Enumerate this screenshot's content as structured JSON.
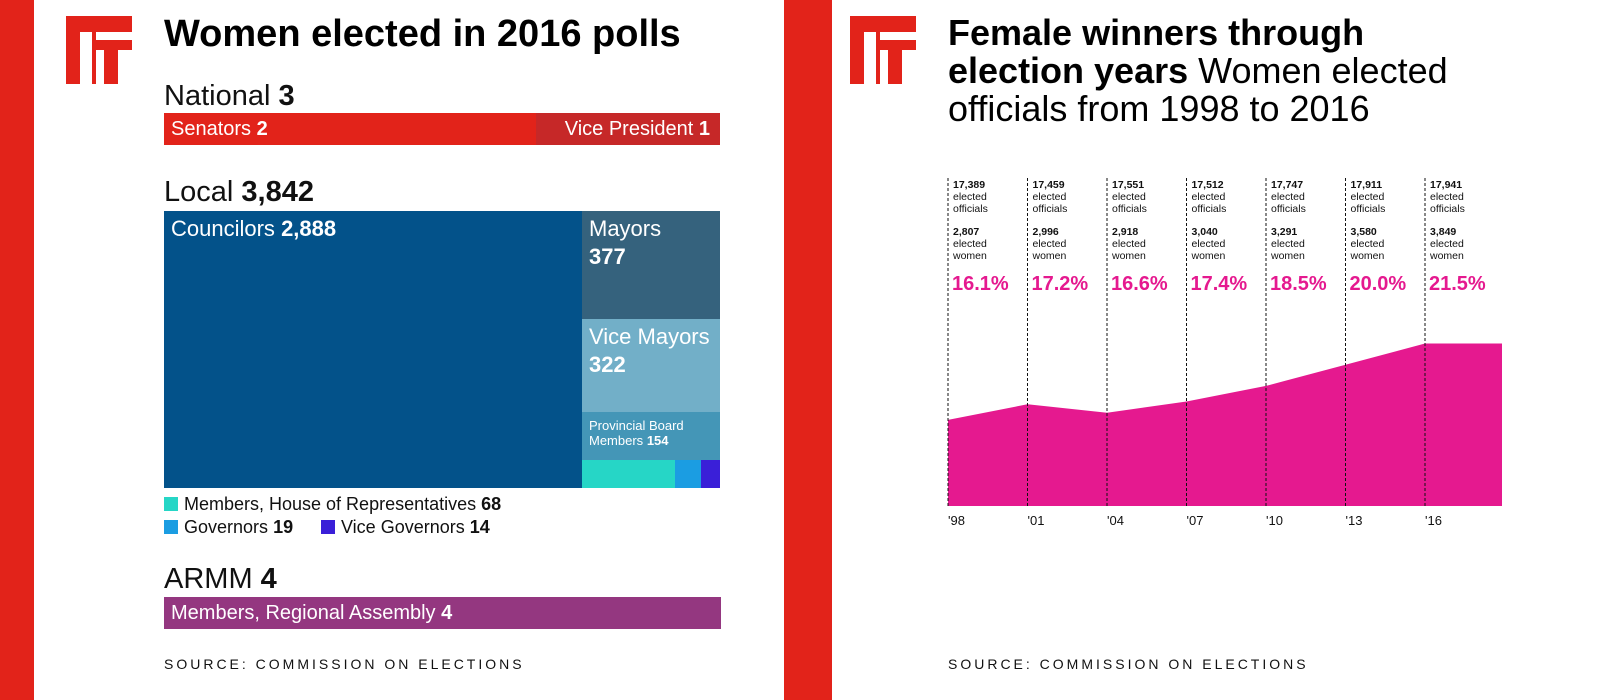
{
  "left": {
    "title": "Women elected in 2016 polls",
    "national": {
      "label": "National",
      "total": "3",
      "senators_label": "Senators",
      "senators_value": "2",
      "vp_label": "Vice President",
      "vp_value": "1"
    },
    "local": {
      "label": "Local",
      "total": "3,842",
      "councilors_label": "Councilors",
      "councilors_value": "2,888",
      "mayors_label": "Mayors",
      "mayors_value": "377",
      "vice_mayors_label": "Vice Mayors",
      "vice_mayors_value": "322",
      "pbm_label_1": "Provincial Board",
      "pbm_label_2": "Members",
      "pbm_value": "154",
      "hor_label": "Members, House of Representatives",
      "hor_value": "68",
      "gov_label": "Governors",
      "gov_value": "19",
      "vgov_label": "Vice Governors",
      "vgov_value": "14"
    },
    "armm": {
      "label": "ARMM",
      "total": "4",
      "assembly_label": "Members, Regional Assembly",
      "assembly_value": "4"
    },
    "source": "SOURCE: COMMISSION ON ELECTIONS",
    "colors": {
      "national_red": "#e2231a",
      "vp_red": "#c62828",
      "councilors": "#03528a",
      "mayors": "#35627d",
      "vice_mayors": "#72afc8",
      "provincial_board": "#4496b7",
      "house_reps": "#26d6c6",
      "governors": "#1b9de2",
      "vice_governors": "#3a1fd8",
      "armm": "#943780"
    }
  },
  "right": {
    "title_bold_1": "Female winners through",
    "title_bold_2": "election years",
    "title_regular_2": "Women elected",
    "title_regular_3": "officials from 1998 to 2016",
    "elected_officials_label_1": "elected",
    "elected_officials_label_2": "officials",
    "elected_women_label_1": "elected",
    "elected_women_label_2": "women",
    "source": "SOURCE: COMMISSION ON ELECTIONS",
    "area_color": "#e5198f"
  },
  "chart_data": [
    {
      "type": "bar",
      "title": "Women elected in 2016 polls",
      "categories": [
        "Senators",
        "Vice President",
        "Councilors",
        "Mayors",
        "Vice Mayors",
        "Provincial Board Members",
        "Members, House of Representatives",
        "Governors",
        "Vice Governors",
        "Members, Regional Assembly"
      ],
      "groups": {
        "National": 3,
        "Local": 3842,
        "ARMM": 4
      },
      "values": [
        2,
        1,
        2888,
        377,
        322,
        154,
        68,
        19,
        14,
        4
      ]
    },
    {
      "type": "area",
      "title": "Female winners through election years Women elected officials from 1998 to 2016",
      "x": [
        "'98",
        "'01",
        "'04",
        "'07",
        "'10",
        "'13",
        "'16"
      ],
      "elected_officials": [
        "17,389",
        "17,459",
        "17,551",
        "17,512",
        "17,747",
        "17,911",
        "17,941"
      ],
      "elected_women": [
        "2,807",
        "2,996",
        "2,918",
        "3,040",
        "3,291",
        "3,580",
        "3,849"
      ],
      "percent_labels": [
        "16.1%",
        "17.2%",
        "16.6%",
        "17.4%",
        "18.5%",
        "20.0%",
        "21.5%"
      ],
      "values": [
        16.1,
        17.2,
        16.6,
        17.4,
        18.5,
        20.0,
        21.5
      ]
    }
  ]
}
